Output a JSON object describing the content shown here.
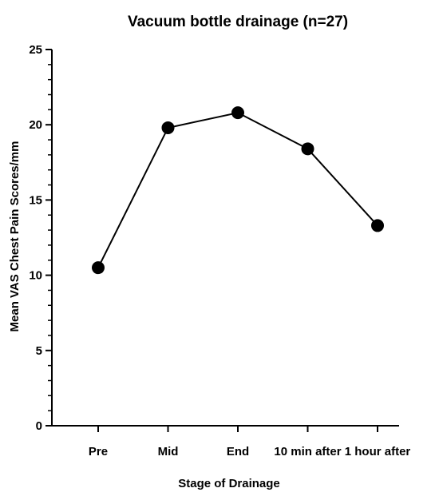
{
  "chart_data": {
    "type": "line",
    "title": "Vacuum bottle drainage (n=27)",
    "xlabel": "Stage of Drainage",
    "ylabel": "Mean VAS Chest Pain Scores/mm",
    "categories": [
      "Pre",
      "Mid",
      "End",
      "10 min after",
      "1 hour after"
    ],
    "series": [
      {
        "values": [
          10.5,
          19.8,
          20.8,
          18.4,
          13.3
        ]
      }
    ],
    "ylim": [
      0,
      25
    ],
    "yticks": [
      "0",
      "5",
      "10",
      "15",
      "20",
      "25"
    ],
    "grid": false,
    "legend": "none",
    "colors": {
      "line": "#000000",
      "marker": "#000000",
      "axis": "#000000"
    }
  }
}
